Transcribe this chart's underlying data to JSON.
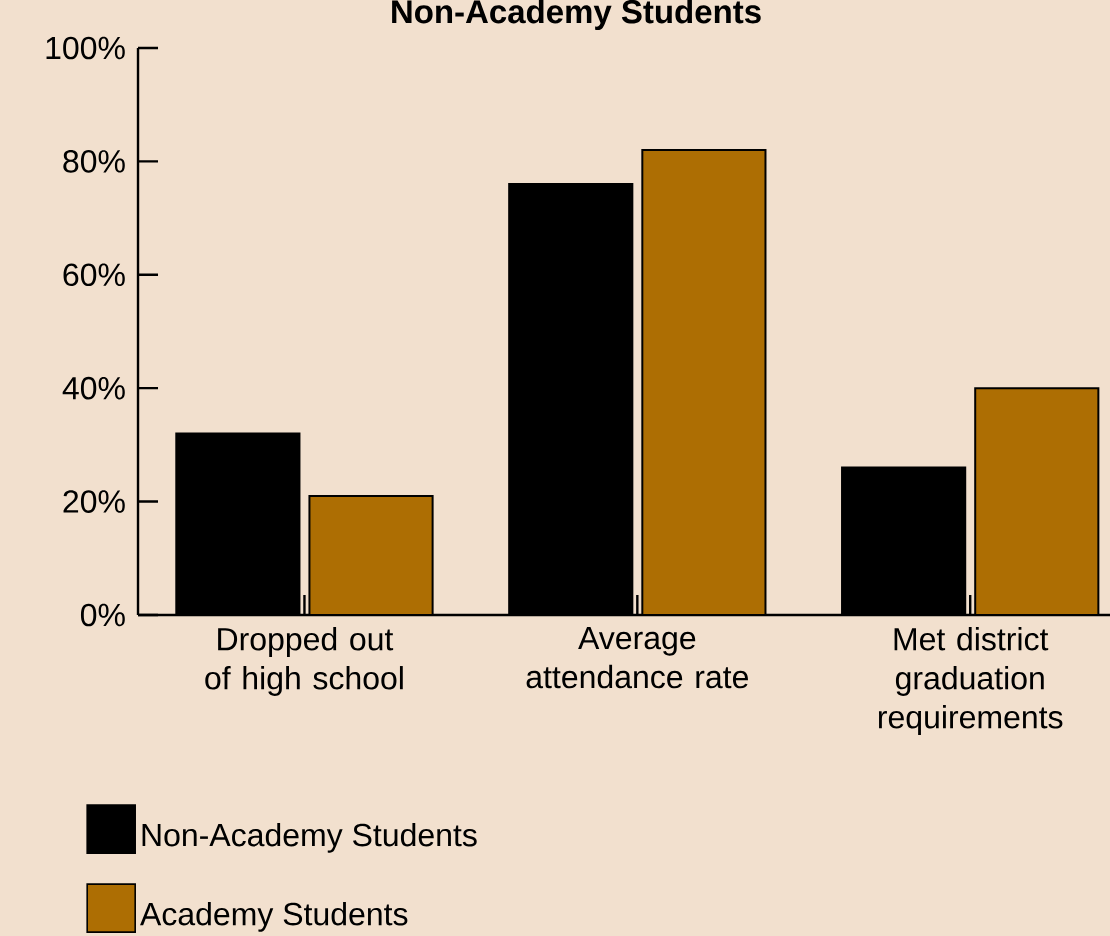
{
  "chart_data": {
    "type": "bar",
    "title": "Non-Academy Students",
    "categories": [
      "Dropped out of high school",
      "Average attendance rate",
      "Met district graduation requirements"
    ],
    "series": [
      {
        "name": "Non-Academy Students",
        "color": "#000000",
        "values": [
          32,
          76,
          26
        ]
      },
      {
        "name": "Academy Students",
        "color": "#ad6e03",
        "values": [
          21,
          82,
          40
        ]
      }
    ],
    "ylim": [
      0,
      100
    ],
    "yticks": [
      {
        "value": 0,
        "label": "0%"
      },
      {
        "value": 20,
        "label": "20%"
      },
      {
        "value": 40,
        "label": "40%"
      },
      {
        "value": 60,
        "label": "60%"
      },
      {
        "value": 80,
        "label": "80%"
      },
      {
        "value": 100,
        "label": "100%"
      }
    ],
    "legend": "bottom"
  }
}
